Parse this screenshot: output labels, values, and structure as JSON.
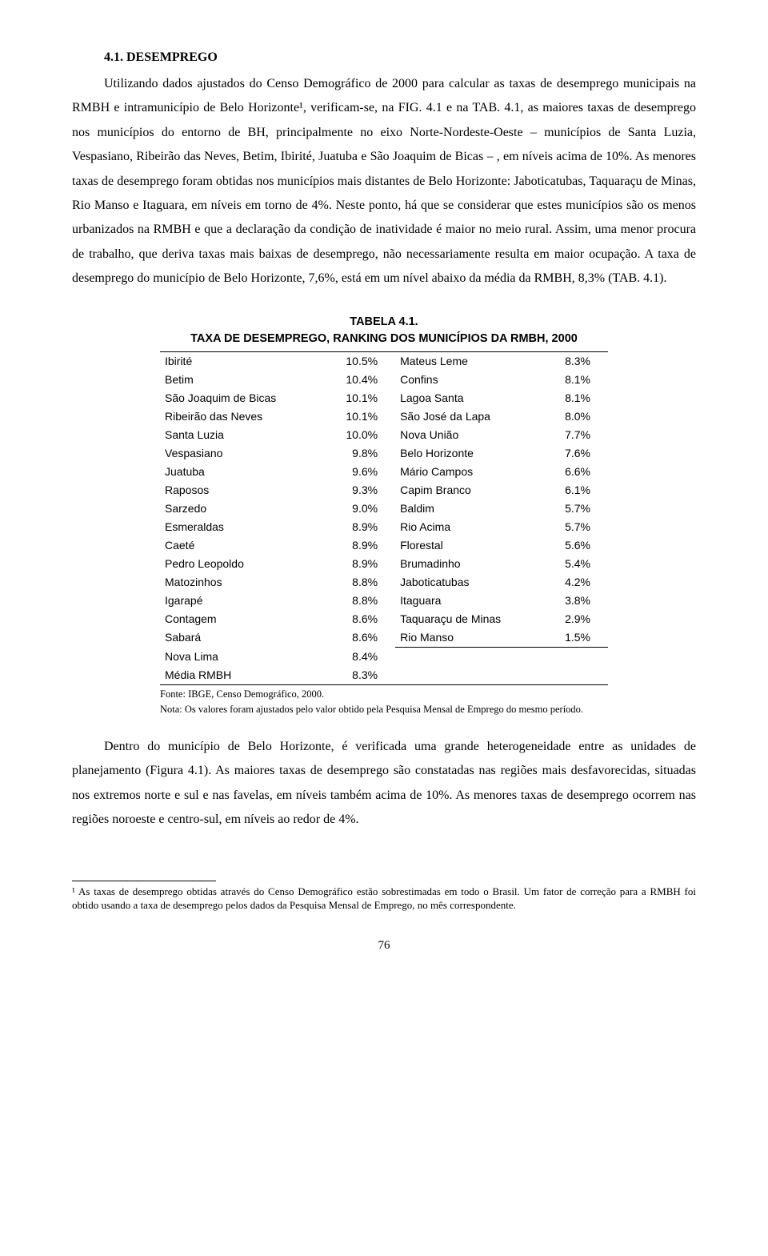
{
  "section_title": "4.1. DESEMPREGO",
  "paragraphs": {
    "p1": "Utilizando dados ajustados do Censo Demográfico de 2000 para calcular as taxas de desemprego municipais na RMBH e intramunicípio de Belo Horizonte¹, verificam-se, na FIG. 4.1 e na TAB. 4.1, as maiores taxas de desemprego nos municípios do entorno de BH, principalmente no eixo Norte-Nordeste-Oeste – municípios de Santa Luzia, Vespasiano, Ribeirão das Neves, Betim, Ibirité, Juatuba e São Joaquim de Bicas – , em níveis acima de 10%. As menores taxas de desemprego foram obtidas nos municípios mais distantes de Belo Horizonte: Jaboticatubas, Taquaraçu de Minas, Rio Manso e Itaguara, em níveis em torno de 4%. Neste ponto, há que se considerar que estes municípios são os menos urbanizados na RMBH e que a declaração da condição de inatividade é maior no meio rural. Assim, uma menor procura de trabalho, que deriva taxas mais baixas de desemprego, não necessariamente resulta em maior ocupação. A taxa de desemprego do município de Belo Horizonte, 7,6%, está em um nível abaixo da média da RMBH, 8,3% (TAB. 4.1).",
    "p2": "Dentro do município de Belo Horizonte, é verificada uma grande heterogeneidade entre as unidades de planejamento (Figura 4.1). As maiores taxas de desemprego são constatadas nas regiões mais desfavorecidas, situadas nos extremos norte e sul e nas favelas, em níveis também acima de 10%. As menores taxas de desemprego ocorrem nas regiões noroeste e centro-sul, em níveis ao redor de 4%."
  },
  "table": {
    "caption1": "TABELA 4.1.",
    "caption2": "TAXA DE DESEMPREGO, RANKING DOS MUNICÍPIOS DA RMBH, 2000",
    "rows": [
      {
        "l": "Ibirité",
        "lv": "10.5%",
        "r": "Mateus Leme",
        "rv": "8.3%"
      },
      {
        "l": "Betim",
        "lv": "10.4%",
        "r": "Confins",
        "rv": "8.1%"
      },
      {
        "l": "São Joaquim de Bicas",
        "lv": "10.1%",
        "r": "Lagoa Santa",
        "rv": "8.1%"
      },
      {
        "l": "Ribeirão das Neves",
        "lv": "10.1%",
        "r": "São José da Lapa",
        "rv": "8.0%"
      },
      {
        "l": "Santa Luzia",
        "lv": "10.0%",
        "r": "Nova União",
        "rv": "7.7%"
      },
      {
        "l": "Vespasiano",
        "lv": "9.8%",
        "r": "Belo Horizonte",
        "rv": "7.6%"
      },
      {
        "l": "Juatuba",
        "lv": "9.6%",
        "r": "Mário Campos",
        "rv": "6.6%"
      },
      {
        "l": "Raposos",
        "lv": "9.3%",
        "r": "Capim Branco",
        "rv": "6.1%"
      },
      {
        "l": "Sarzedo",
        "lv": "9.0%",
        "r": "Baldim",
        "rv": "5.7%"
      },
      {
        "l": "Esmeraldas",
        "lv": "8.9%",
        "r": "Rio Acima",
        "rv": "5.7%"
      },
      {
        "l": "Caeté",
        "lv": "8.9%",
        "r": "Florestal",
        "rv": "5.6%"
      },
      {
        "l": "Pedro Leopoldo",
        "lv": "8.9%",
        "r": "Brumadinho",
        "rv": "5.4%"
      },
      {
        "l": "Matozinhos",
        "lv": "8.8%",
        "r": "Jaboticatubas",
        "rv": "4.2%"
      },
      {
        "l": "Igarapé",
        "lv": "8.8%",
        "r": "Itaguara",
        "rv": "3.8%"
      },
      {
        "l": "Contagem",
        "lv": "8.6%",
        "r": "Taquaraçu de Minas",
        "rv": "2.9%"
      },
      {
        "l": "Sabará",
        "lv": "8.6%",
        "r": "Rio Manso",
        "rv": "1.5%"
      }
    ],
    "extra_rows": [
      {
        "l": "Nova Lima",
        "lv": "8.4%"
      },
      {
        "l": "Média RMBH",
        "lv": "8.3%"
      }
    ],
    "source": "Fonte: IBGE, Censo Demográfico, 2000.",
    "note": "Nota: Os valores foram ajustados pelo valor obtido pela Pesquisa Mensal de Emprego do mesmo período."
  },
  "footnote": "¹ As taxas de desemprego obtidas através do Censo Demográfico estão sobrestimadas em todo o Brasil. Um fator de correção para a RMBH foi obtido usando a taxa de desemprego pelos dados da Pesquisa Mensal de Emprego, no mês correspondente.",
  "page_number": "76"
}
